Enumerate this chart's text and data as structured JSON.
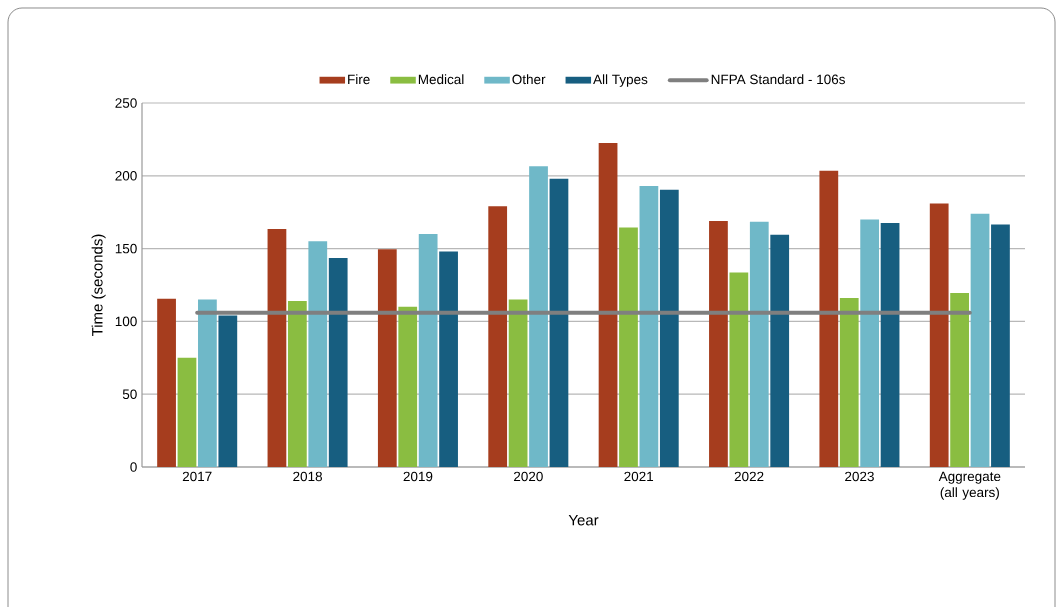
{
  "chart_data": {
    "type": "bar",
    "xlabel": "Year",
    "ylabel": "Time (seconds)",
    "categories": [
      "2017",
      "2018",
      "2019",
      "2020",
      "2021",
      "2022",
      "2023",
      "Aggregate (all years)"
    ],
    "series": [
      {
        "name": "Fire",
        "color": "#a63d1e",
        "values": [
          115.5,
          163.5,
          149.5,
          179,
          222.5,
          169,
          203.5,
          181
        ]
      },
      {
        "name": "Medical",
        "color": "#8abd41",
        "values": [
          75,
          114,
          110,
          115,
          164.5,
          133.5,
          116,
          119.5
        ]
      },
      {
        "name": "Other",
        "color": "#6fb8c8",
        "values": [
          115,
          155,
          160,
          206.5,
          193,
          168.5,
          170,
          174
        ]
      },
      {
        "name": "All Types",
        "color": "#175e80",
        "values": [
          104,
          143.5,
          148,
          198,
          190.5,
          159.5,
          167.5,
          166.5
        ]
      },
      {
        "name": "NFPA Standard - 106s",
        "color": "#7f7f7f",
        "type": "line",
        "values": [
          106,
          106,
          106,
          106,
          106,
          106,
          106,
          106
        ]
      }
    ],
    "ylim": [
      0,
      250
    ],
    "yticks": [
      0,
      50,
      100,
      150,
      200,
      250
    ],
    "grid": "y",
    "legend": "top"
  }
}
